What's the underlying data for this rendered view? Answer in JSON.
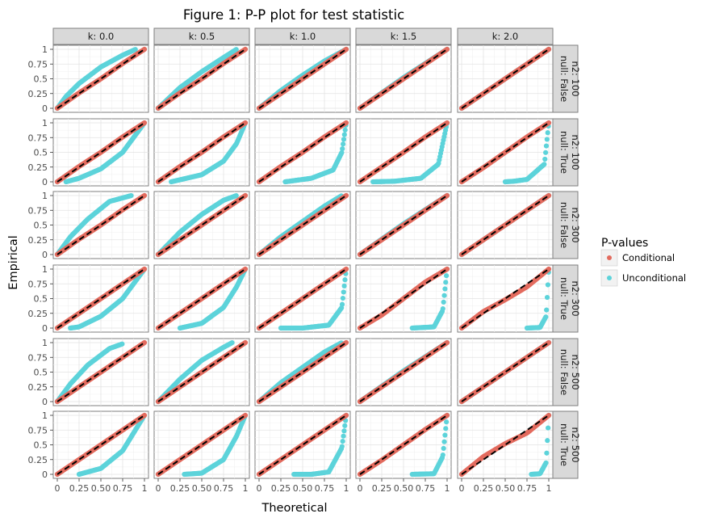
{
  "chart_data": {
    "type": "scatter",
    "title": "Figure 1: P-P plot for test statistic",
    "xlabel": "Theoretical",
    "ylabel": "Empirical",
    "xlim": [
      0,
      1
    ],
    "ylim": [
      0,
      1
    ],
    "x_ticks": [
      "0",
      "0.25",
      "0.50",
      "0.75",
      "1"
    ],
    "y_ticks": [
      "0",
      "0.25",
      "0.5",
      "0.75",
      "1"
    ],
    "grid": true,
    "reference_line": "dashed diagonal y = x",
    "legend": {
      "title": "P-values",
      "position": "right",
      "entries": [
        {
          "name": "Conditional",
          "color": "#E36B5E"
        },
        {
          "name": "Unconditional",
          "color": "#5CD3DA"
        }
      ]
    },
    "facet_columns": [
      "k: 0.0",
      "k: 0.5",
      "k: 1.0",
      "k: 1.5",
      "k: 2.0"
    ],
    "facet_rows": [
      [
        "null: False",
        "n2: 100"
      ],
      [
        "null: True",
        "n2: 100"
      ],
      [
        "null: False",
        "n2: 300"
      ],
      [
        "null: True",
        "n2: 300"
      ],
      [
        "null: False",
        "n2: 500"
      ],
      [
        "null: True",
        "n2: 500"
      ]
    ],
    "panels": [
      {
        "row": 0,
        "col": 0,
        "conditional": [
          [
            0,
            0
          ],
          [
            0.25,
            0.26
          ],
          [
            0.5,
            0.5
          ],
          [
            0.75,
            0.76
          ],
          [
            1,
            1
          ]
        ],
        "unconditional": [
          [
            0,
            0
          ],
          [
            0.1,
            0.2
          ],
          [
            0.25,
            0.42
          ],
          [
            0.5,
            0.7
          ],
          [
            0.75,
            0.9
          ],
          [
            0.9,
            1.0
          ]
        ]
      },
      {
        "row": 0,
        "col": 1,
        "conditional": [
          [
            0,
            0
          ],
          [
            0.25,
            0.26
          ],
          [
            0.5,
            0.5
          ],
          [
            0.75,
            0.76
          ],
          [
            1,
            1
          ]
        ],
        "unconditional": [
          [
            0,
            0
          ],
          [
            0.25,
            0.35
          ],
          [
            0.5,
            0.62
          ],
          [
            0.75,
            0.86
          ],
          [
            0.9,
            1.0
          ]
        ]
      },
      {
        "row": 0,
        "col": 2,
        "conditional": [
          [
            0,
            0
          ],
          [
            0.5,
            0.5
          ],
          [
            1,
            1
          ]
        ],
        "unconditional": [
          [
            0,
            0
          ],
          [
            0.25,
            0.3
          ],
          [
            0.5,
            0.56
          ],
          [
            0.75,
            0.8
          ],
          [
            1,
            1
          ]
        ]
      },
      {
        "row": 0,
        "col": 3,
        "conditional": [
          [
            0,
            0
          ],
          [
            0.5,
            0.5
          ],
          [
            1,
            1
          ]
        ],
        "unconditional": [
          [
            0,
            0
          ],
          [
            0.5,
            0.52
          ],
          [
            1,
            1
          ]
        ]
      },
      {
        "row": 0,
        "col": 4,
        "conditional": [
          [
            0,
            0
          ],
          [
            0.5,
            0.5
          ],
          [
            1,
            1
          ]
        ],
        "unconditional": [
          [
            0,
            0
          ],
          [
            0.5,
            0.5
          ],
          [
            1,
            1
          ]
        ]
      },
      {
        "row": 1,
        "col": 0,
        "conditional": [
          [
            0,
            0
          ],
          [
            0.25,
            0.26
          ],
          [
            0.5,
            0.5
          ],
          [
            0.75,
            0.76
          ],
          [
            1,
            1
          ]
        ],
        "unconditional": [
          [
            0.1,
            0
          ],
          [
            0.25,
            0.06
          ],
          [
            0.5,
            0.22
          ],
          [
            0.75,
            0.5
          ],
          [
            1,
            1
          ]
        ]
      },
      {
        "row": 1,
        "col": 1,
        "conditional": [
          [
            0,
            0
          ],
          [
            0.25,
            0.26
          ],
          [
            0.5,
            0.5
          ],
          [
            0.75,
            0.76
          ],
          [
            1,
            1
          ]
        ],
        "unconditional": [
          [
            0.15,
            0
          ],
          [
            0.5,
            0.12
          ],
          [
            0.75,
            0.35
          ],
          [
            0.9,
            0.65
          ],
          [
            1,
            1
          ]
        ]
      },
      {
        "row": 1,
        "col": 2,
        "conditional": [
          [
            0,
            0
          ],
          [
            0.25,
            0.26
          ],
          [
            0.5,
            0.5
          ],
          [
            0.75,
            0.76
          ],
          [
            1,
            1
          ]
        ],
        "unconditional": [
          [
            0.3,
            0
          ],
          [
            0.6,
            0.06
          ],
          [
            0.85,
            0.2
          ],
          [
            0.95,
            0.5
          ],
          [
            1,
            1
          ]
        ]
      },
      {
        "row": 1,
        "col": 3,
        "conditional": [
          [
            0,
            0
          ],
          [
            0.25,
            0.25
          ],
          [
            0.5,
            0.5
          ],
          [
            0.75,
            0.76
          ],
          [
            1,
            1
          ]
        ],
        "unconditional": [
          [
            0.15,
            0
          ],
          [
            0.4,
            0.01
          ],
          [
            0.7,
            0.06
          ],
          [
            0.9,
            0.3
          ],
          [
            1,
            1
          ]
        ]
      },
      {
        "row": 1,
        "col": 4,
        "conditional": [
          [
            0,
            0
          ],
          [
            0.25,
            0.24
          ],
          [
            0.5,
            0.5
          ],
          [
            0.75,
            0.76
          ],
          [
            1,
            1
          ]
        ],
        "unconditional": [
          [
            0.5,
            0
          ],
          [
            0.6,
            0.01
          ],
          [
            0.75,
            0.04
          ],
          [
            0.95,
            0.3
          ],
          [
            1,
            1
          ]
        ]
      },
      {
        "row": 2,
        "col": 0,
        "conditional": [
          [
            0,
            0
          ],
          [
            0.25,
            0.26
          ],
          [
            0.5,
            0.5
          ],
          [
            0.75,
            0.76
          ],
          [
            1,
            1
          ]
        ],
        "unconditional": [
          [
            0,
            0
          ],
          [
            0.15,
            0.3
          ],
          [
            0.35,
            0.6
          ],
          [
            0.6,
            0.9
          ],
          [
            0.85,
            1.0
          ]
        ]
      },
      {
        "row": 2,
        "col": 1,
        "conditional": [
          [
            0,
            0
          ],
          [
            0.5,
            0.5
          ],
          [
            1,
            1
          ]
        ],
        "unconditional": [
          [
            0,
            0
          ],
          [
            0.25,
            0.38
          ],
          [
            0.5,
            0.68
          ],
          [
            0.75,
            0.92
          ],
          [
            0.9,
            1.0
          ]
        ]
      },
      {
        "row": 2,
        "col": 2,
        "conditional": [
          [
            0,
            0
          ],
          [
            0.5,
            0.5
          ],
          [
            1,
            1
          ]
        ],
        "unconditional": [
          [
            0,
            0
          ],
          [
            0.25,
            0.3
          ],
          [
            0.5,
            0.56
          ],
          [
            0.75,
            0.82
          ],
          [
            0.95,
            1.0
          ]
        ]
      },
      {
        "row": 2,
        "col": 3,
        "conditional": [
          [
            0,
            0
          ],
          [
            0.5,
            0.5
          ],
          [
            1,
            1
          ]
        ],
        "unconditional": [
          [
            0,
            0
          ],
          [
            0.5,
            0.52
          ],
          [
            1,
            1
          ]
        ]
      },
      {
        "row": 2,
        "col": 4,
        "conditional": [
          [
            0,
            0
          ],
          [
            0.5,
            0.5
          ],
          [
            1,
            1
          ]
        ],
        "unconditional": [
          [
            0,
            0
          ],
          [
            0.5,
            0.5
          ],
          [
            1,
            1
          ]
        ]
      },
      {
        "row": 3,
        "col": 0,
        "conditional": [
          [
            0,
            0
          ],
          [
            0.5,
            0.5
          ],
          [
            1,
            1
          ]
        ],
        "unconditional": [
          [
            0.15,
            0
          ],
          [
            0.25,
            0.02
          ],
          [
            0.5,
            0.2
          ],
          [
            0.75,
            0.5
          ],
          [
            1,
            1
          ]
        ]
      },
      {
        "row": 3,
        "col": 1,
        "conditional": [
          [
            0,
            0
          ],
          [
            0.5,
            0.5
          ],
          [
            1,
            1
          ]
        ],
        "unconditional": [
          [
            0.25,
            0
          ],
          [
            0.5,
            0.08
          ],
          [
            0.75,
            0.35
          ],
          [
            0.9,
            0.7
          ],
          [
            1,
            1
          ]
        ]
      },
      {
        "row": 3,
        "col": 2,
        "conditional": [
          [
            0,
            0
          ],
          [
            0.5,
            0.5
          ],
          [
            1,
            1
          ]
        ],
        "unconditional": [
          [
            0.25,
            0
          ],
          [
            0.5,
            0
          ],
          [
            0.8,
            0.05
          ],
          [
            0.95,
            0.35
          ],
          [
            1,
            1
          ]
        ]
      },
      {
        "row": 3,
        "col": 3,
        "conditional": [
          [
            0,
            0
          ],
          [
            0.25,
            0.22
          ],
          [
            0.5,
            0.5
          ],
          [
            0.75,
            0.78
          ],
          [
            1,
            1
          ]
        ],
        "unconditional": [
          [
            0.6,
            0
          ],
          [
            0.85,
            0.02
          ],
          [
            0.95,
            0.3
          ],
          [
            1,
            1
          ]
        ]
      },
      {
        "row": 3,
        "col": 4,
        "conditional": [
          [
            0,
            0
          ],
          [
            0.25,
            0.28
          ],
          [
            0.5,
            0.48
          ],
          [
            0.75,
            0.7
          ],
          [
            1,
            1
          ]
        ],
        "unconditional": [
          [
            0.75,
            0
          ],
          [
            0.9,
            0.01
          ],
          [
            0.97,
            0.2
          ],
          [
            1,
            1
          ]
        ]
      },
      {
        "row": 4,
        "col": 0,
        "conditional": [
          [
            0,
            0
          ],
          [
            0.5,
            0.5
          ],
          [
            1,
            1
          ]
        ],
        "unconditional": [
          [
            0,
            0
          ],
          [
            0.15,
            0.3
          ],
          [
            0.35,
            0.62
          ],
          [
            0.6,
            0.9
          ],
          [
            0.75,
            0.98
          ]
        ]
      },
      {
        "row": 4,
        "col": 1,
        "conditional": [
          [
            0,
            0
          ],
          [
            0.5,
            0.5
          ],
          [
            1,
            1
          ]
        ],
        "unconditional": [
          [
            0,
            0
          ],
          [
            0.25,
            0.38
          ],
          [
            0.5,
            0.7
          ],
          [
            0.75,
            0.92
          ],
          [
            0.85,
            1.0
          ]
        ]
      },
      {
        "row": 4,
        "col": 2,
        "conditional": [
          [
            0,
            0
          ],
          [
            0.5,
            0.5
          ],
          [
            1,
            1
          ]
        ],
        "unconditional": [
          [
            0,
            0
          ],
          [
            0.25,
            0.32
          ],
          [
            0.5,
            0.58
          ],
          [
            0.75,
            0.84
          ],
          [
            0.95,
            1.0
          ]
        ]
      },
      {
        "row": 4,
        "col": 3,
        "conditional": [
          [
            0,
            0
          ],
          [
            0.5,
            0.5
          ],
          [
            1,
            1
          ]
        ],
        "unconditional": [
          [
            0,
            0
          ],
          [
            0.5,
            0.52
          ],
          [
            1,
            1
          ]
        ]
      },
      {
        "row": 4,
        "col": 4,
        "conditional": [
          [
            0,
            0
          ],
          [
            0.5,
            0.5
          ],
          [
            1,
            1
          ]
        ],
        "unconditional": [
          [
            0,
            0
          ],
          [
            0.5,
            0.5
          ],
          [
            1,
            1
          ]
        ]
      },
      {
        "row": 5,
        "col": 0,
        "conditional": [
          [
            0,
            0
          ],
          [
            0.5,
            0.5
          ],
          [
            1,
            1
          ]
        ],
        "unconditional": [
          [
            0.25,
            0
          ],
          [
            0.5,
            0.1
          ],
          [
            0.75,
            0.4
          ],
          [
            1,
            1
          ]
        ]
      },
      {
        "row": 5,
        "col": 1,
        "conditional": [
          [
            0,
            0
          ],
          [
            0.5,
            0.5
          ],
          [
            1,
            1
          ]
        ],
        "unconditional": [
          [
            0.3,
            0
          ],
          [
            0.5,
            0.02
          ],
          [
            0.75,
            0.25
          ],
          [
            0.9,
            0.65
          ],
          [
            1,
            1
          ]
        ]
      },
      {
        "row": 5,
        "col": 2,
        "conditional": [
          [
            0,
            0
          ],
          [
            0.5,
            0.5
          ],
          [
            1,
            1
          ]
        ],
        "unconditional": [
          [
            0.4,
            0
          ],
          [
            0.6,
            0
          ],
          [
            0.8,
            0.04
          ],
          [
            0.95,
            0.45
          ],
          [
            1,
            1
          ]
        ]
      },
      {
        "row": 5,
        "col": 3,
        "conditional": [
          [
            0,
            0
          ],
          [
            0.25,
            0.24
          ],
          [
            0.5,
            0.5
          ],
          [
            0.75,
            0.76
          ],
          [
            1,
            1
          ]
        ],
        "unconditional": [
          [
            0.6,
            0
          ],
          [
            0.85,
            0.01
          ],
          [
            0.95,
            0.3
          ],
          [
            1,
            1
          ]
        ]
      },
      {
        "row": 5,
        "col": 4,
        "conditional": [
          [
            0,
            0
          ],
          [
            0.25,
            0.3
          ],
          [
            0.5,
            0.52
          ],
          [
            0.75,
            0.7
          ],
          [
            1,
            1
          ]
        ],
        "unconditional": [
          [
            0.8,
            0
          ],
          [
            0.9,
            0.01
          ],
          [
            0.97,
            0.2
          ],
          [
            1,
            1
          ]
        ]
      }
    ]
  }
}
